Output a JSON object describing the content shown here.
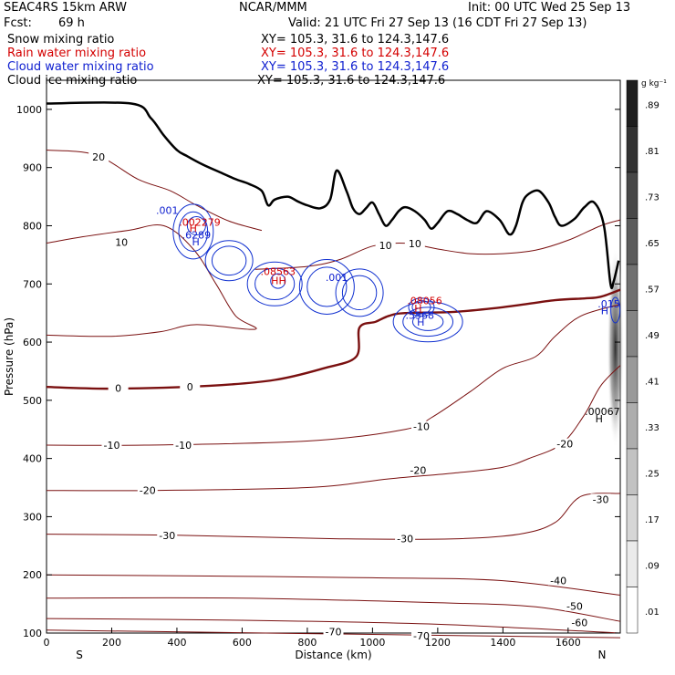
{
  "header": {
    "model": "SEAC4RS 15km ARW",
    "agency": "NCAR/MMM",
    "init": "Init: 00 UTC Wed 25 Sep 13",
    "fcst_label": "Fcst:",
    "fcst_value": "69 h",
    "valid": "Valid: 21 UTC Fri 27 Sep 13 (16 CDT Fri 27 Sep 13)"
  },
  "legend": [
    {
      "label": "Snow mixing ratio",
      "xy": "XY= 105.3, 31.6 to 124.3,147.6",
      "color": "#000000"
    },
    {
      "label": "Rain water mixing ratio",
      "xy": "XY= 105.3, 31.6 to 124.3,147.6",
      "color": "#d40000"
    },
    {
      "label": "Cloud water mixing ratio",
      "xy": "XY= 105.3, 31.6 to 124.3,147.6",
      "color": "#1020d0"
    },
    {
      "label": "Cloud ice mixing ratio",
      "xy": "XY= 105.3, 31.6 to 124.3,147.6",
      "color": "#000000"
    }
  ],
  "chart_data": {
    "type": "contour cross-section",
    "xlabel": "Distance (km)",
    "ylabel": "Pressure (hPa)",
    "xlim": [
      0,
      1760
    ],
    "ylim": [
      1050,
      100
    ],
    "x_ticks": [
      "0",
      "200",
      "400",
      "600",
      "800",
      "1000",
      "1200",
      "1400",
      "1600"
    ],
    "x_tick_values": [
      0,
      200,
      400,
      600,
      800,
      1000,
      1200,
      1400,
      1600
    ],
    "y_ticks": [
      "1000",
      "900",
      "800",
      "700",
      "600",
      "500",
      "400",
      "300",
      "200",
      "100"
    ],
    "y_tick_values": [
      1000,
      900,
      800,
      700,
      600,
      500,
      400,
      300,
      200,
      100
    ],
    "endpoints": {
      "left": "S",
      "right": "N"
    },
    "colorbar": {
      "unit": "g kg⁻¹",
      "labels": [
        ".89",
        ".81",
        ".73",
        ".65",
        ".57",
        ".49",
        ".41",
        ".33",
        ".25",
        ".17",
        ".09",
        ".01"
      ]
    },
    "temperature_contours": [
      {
        "value": -70,
        "points": [
          [
            0,
            105
          ],
          [
            1760,
            92
          ]
        ]
      },
      {
        "value": -60,
        "points": [
          [
            0,
            125
          ],
          [
            600,
            122
          ],
          [
            1200,
            115
          ],
          [
            1760,
            100
          ]
        ]
      },
      {
        "value": -50,
        "points": [
          [
            0,
            160
          ],
          [
            600,
            160
          ],
          [
            1200,
            152
          ],
          [
            1500,
            145
          ],
          [
            1760,
            120
          ]
        ]
      },
      {
        "value": -40,
        "points": [
          [
            0,
            200
          ],
          [
            500,
            198
          ],
          [
            1000,
            195
          ],
          [
            1400,
            190
          ],
          [
            1760,
            165
          ]
        ]
      },
      {
        "value": -30,
        "points": [
          [
            0,
            270
          ],
          [
            400,
            268
          ],
          [
            900,
            262
          ],
          [
            1250,
            262
          ],
          [
            1450,
            270
          ],
          [
            1560,
            290
          ],
          [
            1640,
            335
          ],
          [
            1760,
            340
          ]
        ]
      },
      {
        "value": -20,
        "points": [
          [
            0,
            345
          ],
          [
            300,
            345
          ],
          [
            800,
            350
          ],
          [
            1050,
            365
          ],
          [
            1250,
            375
          ],
          [
            1400,
            385
          ],
          [
            1480,
            400
          ],
          [
            1580,
            425
          ],
          [
            1650,
            475
          ],
          [
            1700,
            525
          ],
          [
            1760,
            560
          ]
        ]
      },
      {
        "value": -10,
        "points": [
          [
            0,
            423
          ],
          [
            300,
            423
          ],
          [
            800,
            430
          ],
          [
            1100,
            450
          ],
          [
            1180,
            470
          ],
          [
            1300,
            515
          ],
          [
            1400,
            555
          ],
          [
            1500,
            575
          ],
          [
            1560,
            610
          ],
          [
            1640,
            645
          ],
          [
            1760,
            665
          ]
        ]
      },
      {
        "value": 0,
        "points": [
          [
            0,
            523
          ],
          [
            200,
            520
          ],
          [
            500,
            525
          ],
          [
            700,
            535
          ],
          [
            850,
            555
          ],
          [
            950,
            575
          ],
          [
            960,
            625
          ],
          [
            1010,
            635
          ],
          [
            1050,
            645
          ],
          [
            1100,
            650
          ],
          [
            1250,
            652
          ],
          [
            1400,
            660
          ],
          [
            1560,
            672
          ],
          [
            1650,
            675
          ],
          [
            1700,
            678
          ],
          [
            1760,
            690
          ]
        ]
      },
      {
        "value": 10,
        "points": [
          [
            0,
            612
          ],
          [
            200,
            610
          ],
          [
            350,
            618
          ],
          [
            460,
            630
          ],
          [
            640,
            622
          ],
          [
            580,
            645
          ],
          [
            520,
            700
          ],
          [
            450,
            760
          ],
          [
            360,
            800
          ],
          [
            250,
            792
          ],
          [
            100,
            780
          ],
          [
            0,
            770
          ]
        ]
      },
      {
        "value": 10,
        "points": [
          [
            640,
            725
          ],
          [
            800,
            730
          ],
          [
            900,
            742
          ],
          [
            1000,
            765
          ],
          [
            1100,
            770
          ],
          [
            1200,
            760
          ],
          [
            1300,
            752
          ],
          [
            1400,
            752
          ],
          [
            1500,
            758
          ],
          [
            1600,
            775
          ],
          [
            1700,
            800
          ],
          [
            1760,
            810
          ]
        ]
      },
      {
        "value": 20,
        "points": [
          [
            0,
            930
          ],
          [
            150,
            922
          ],
          [
            280,
            880
          ],
          [
            380,
            860
          ],
          [
            460,
            835
          ],
          [
            560,
            808
          ],
          [
            660,
            792
          ]
        ]
      }
    ],
    "surface_terrain": [
      [
        0,
        1010
      ],
      [
        260,
        1010
      ],
      [
        320,
        985
      ],
      [
        360,
        955
      ],
      [
        400,
        930
      ],
      [
        430,
        920
      ],
      [
        480,
        905
      ],
      [
        540,
        890
      ],
      [
        580,
        880
      ],
      [
        620,
        872
      ],
      [
        660,
        860
      ],
      [
        680,
        835
      ],
      [
        700,
        845
      ],
      [
        740,
        850
      ],
      [
        770,
        842
      ],
      [
        800,
        835
      ],
      [
        840,
        830
      ],
      [
        870,
        845
      ],
      [
        890,
        895
      ],
      [
        920,
        860
      ],
      [
        940,
        830
      ],
      [
        960,
        820
      ],
      [
        980,
        830
      ],
      [
        1000,
        840
      ],
      [
        1020,
        820
      ],
      [
        1040,
        800
      ],
      [
        1060,
        810
      ],
      [
        1080,
        825
      ],
      [
        1100,
        832
      ],
      [
        1130,
        825
      ],
      [
        1160,
        810
      ],
      [
        1180,
        795
      ],
      [
        1200,
        805
      ],
      [
        1230,
        825
      ],
      [
        1260,
        820
      ],
      [
        1290,
        810
      ],
      [
        1320,
        805
      ],
      [
        1350,
        825
      ],
      [
        1390,
        810
      ],
      [
        1420,
        785
      ],
      [
        1440,
        800
      ],
      [
        1460,
        840
      ],
      [
        1480,
        855
      ],
      [
        1510,
        860
      ],
      [
        1540,
        840
      ],
      [
        1560,
        815
      ],
      [
        1580,
        800
      ],
      [
        1620,
        812
      ],
      [
        1650,
        832
      ],
      [
        1680,
        840
      ],
      [
        1710,
        800
      ],
      [
        1730,
        700
      ],
      [
        1740,
        705
      ],
      [
        1755,
        740
      ]
    ],
    "cloud_water_labels": [
      {
        "text": ".001",
        "x": 370,
        "y": 820
      },
      {
        "text": ".6289",
        "x": 460,
        "y": 778
      },
      {
        "text": ".001",
        "x": 890,
        "y": 705
      },
      {
        "text": ".5568",
        "x": 1145,
        "y": 640
      },
      {
        "text": ".015",
        "x": 1725,
        "y": 660
      }
    ],
    "rain_water_labels": [
      {
        "text": ".002279",
        "x": 470,
        "y": 800
      },
      {
        "text": ".08563",
        "x": 710,
        "y": 715
      },
      {
        "text": ".08056",
        "x": 1160,
        "y": 665
      }
    ],
    "cloud_ice_labels": [
      {
        "text": ".00067",
        "x": 1705,
        "y": 475
      }
    ],
    "extremum_markers": [
      {
        "text": "H",
        "x": 458,
        "y": 766,
        "color": "#1020d0"
      },
      {
        "text": "H",
        "x": 450,
        "y": 790,
        "color": "#d40000"
      },
      {
        "text": "HH",
        "x": 712,
        "y": 700,
        "color": "#d40000"
      },
      {
        "text": "H",
        "x": 1148,
        "y": 628,
        "color": "#1020d0"
      },
      {
        "text": "H",
        "x": 1140,
        "y": 652,
        "color": "#d40000"
      },
      {
        "text": "H",
        "x": 1712,
        "y": 648,
        "color": "#1020d0"
      },
      {
        "text": "H",
        "x": 1695,
        "y": 462,
        "color": "#000000"
      }
    ]
  }
}
